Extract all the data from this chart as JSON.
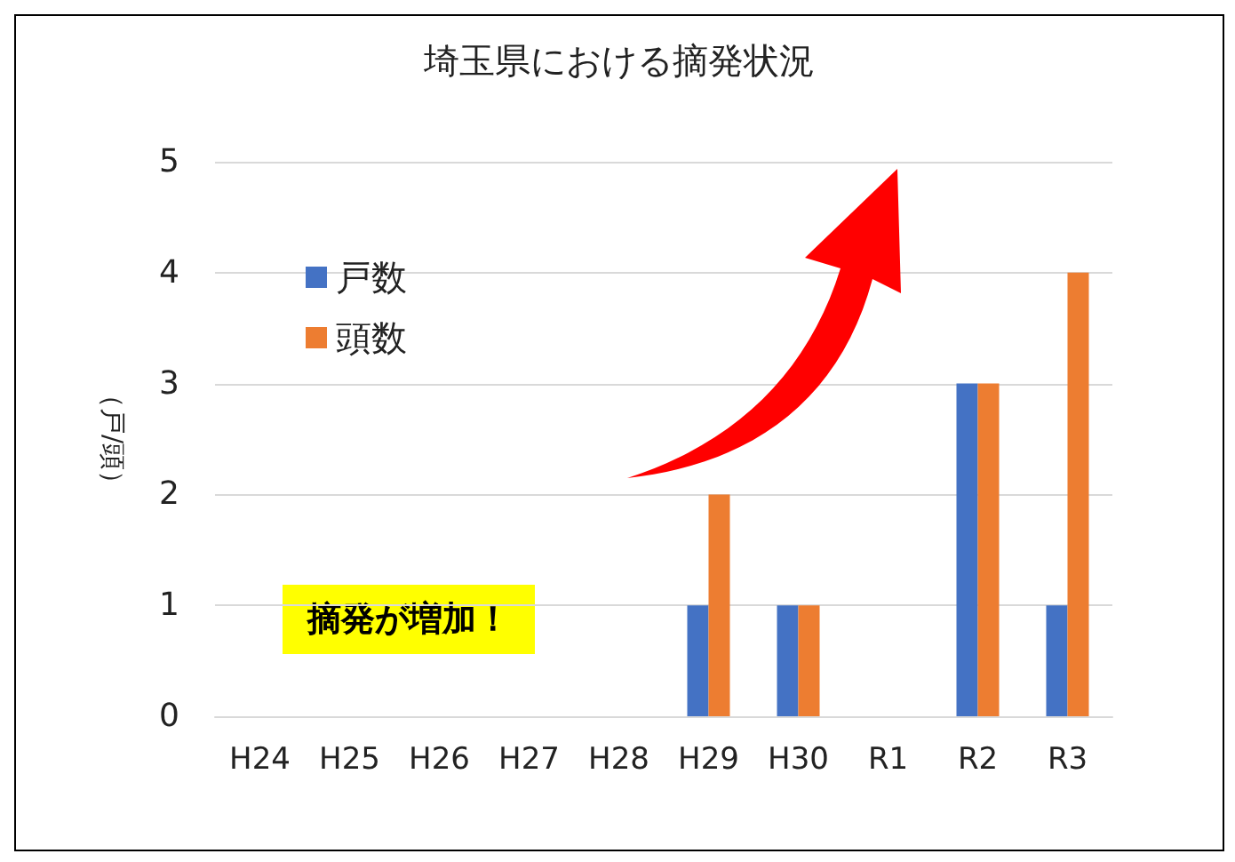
{
  "chart_data": {
    "type": "bar",
    "title": "埼玉県における摘発状況",
    "ylabel": "（戸/頭）",
    "categories": [
      "H24",
      "H25",
      "H26",
      "H27",
      "H28",
      "H29",
      "H30",
      "R1",
      "R2",
      "R3"
    ],
    "series": [
      {
        "name": "戸数",
        "color": "#4472c4",
        "values": [
          0,
          0,
          0,
          0,
          0,
          1,
          1,
          0,
          3,
          1
        ]
      },
      {
        "name": "頭数",
        "color": "#ed7d31",
        "values": [
          0,
          0,
          0,
          0,
          0,
          2,
          1,
          0,
          3,
          4
        ]
      }
    ],
    "ylim": [
      0,
      5
    ],
    "yticks": [
      0,
      1,
      2,
      3,
      4,
      5
    ],
    "grid": "y",
    "legend": "top left",
    "annotations": [
      "摘発が増加！"
    ]
  }
}
